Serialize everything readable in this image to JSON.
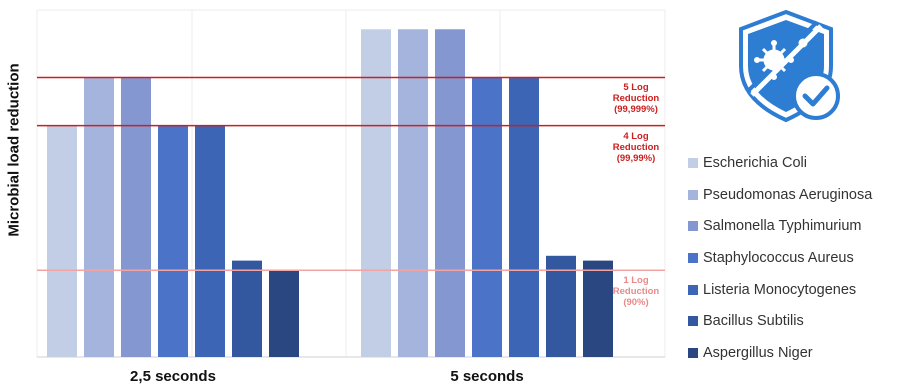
{
  "chart_data": {
    "type": "bar",
    "categories": [
      "2,5 seconds",
      "5 seconds"
    ],
    "series": [
      {
        "name": "Escherichia Coli",
        "color": "#c2cde6",
        "values": [
          4,
          6
        ]
      },
      {
        "name": "Pseudomonas Aeruginosa",
        "color": "#a5b4dc",
        "values": [
          5,
          6
        ]
      },
      {
        "name": "Salmonella Typhimurium",
        "color": "#8497d0",
        "values": [
          5,
          6
        ]
      },
      {
        "name": "Staphylococcus Aureus",
        "color": "#4b73c8",
        "values": [
          4,
          5
        ]
      },
      {
        "name": "Listeria Monocytogenes",
        "color": "#3d65b5",
        "values": [
          4,
          5
        ]
      },
      {
        "name": "Bacillus Subtilis",
        "color": "#34589f",
        "values": [
          1.2,
          1.3
        ]
      },
      {
        "name": "Aspergillus Niger",
        "color": "#2b4782",
        "values": [
          1,
          1.2
        ]
      }
    ],
    "ylabel": "Microbial load reduction",
    "ylim": [
      -0.8,
      6.4
    ],
    "reference_lines": [
      {
        "value": 5,
        "label": "5 Log\nReduction\n(99,999%)",
        "color": "#cc1f1f"
      },
      {
        "value": 4,
        "label": "4 Log\nReduction\n(99,99%)",
        "color": "#cc1f1f"
      },
      {
        "value": 1,
        "label": "1 Log\nReduction\n(90%)",
        "color": "#f2a3a3"
      }
    ],
    "legend_position": "right"
  },
  "logo": {
    "icon": "shield-virus-check-icon",
    "color": "#2d7dd2"
  }
}
